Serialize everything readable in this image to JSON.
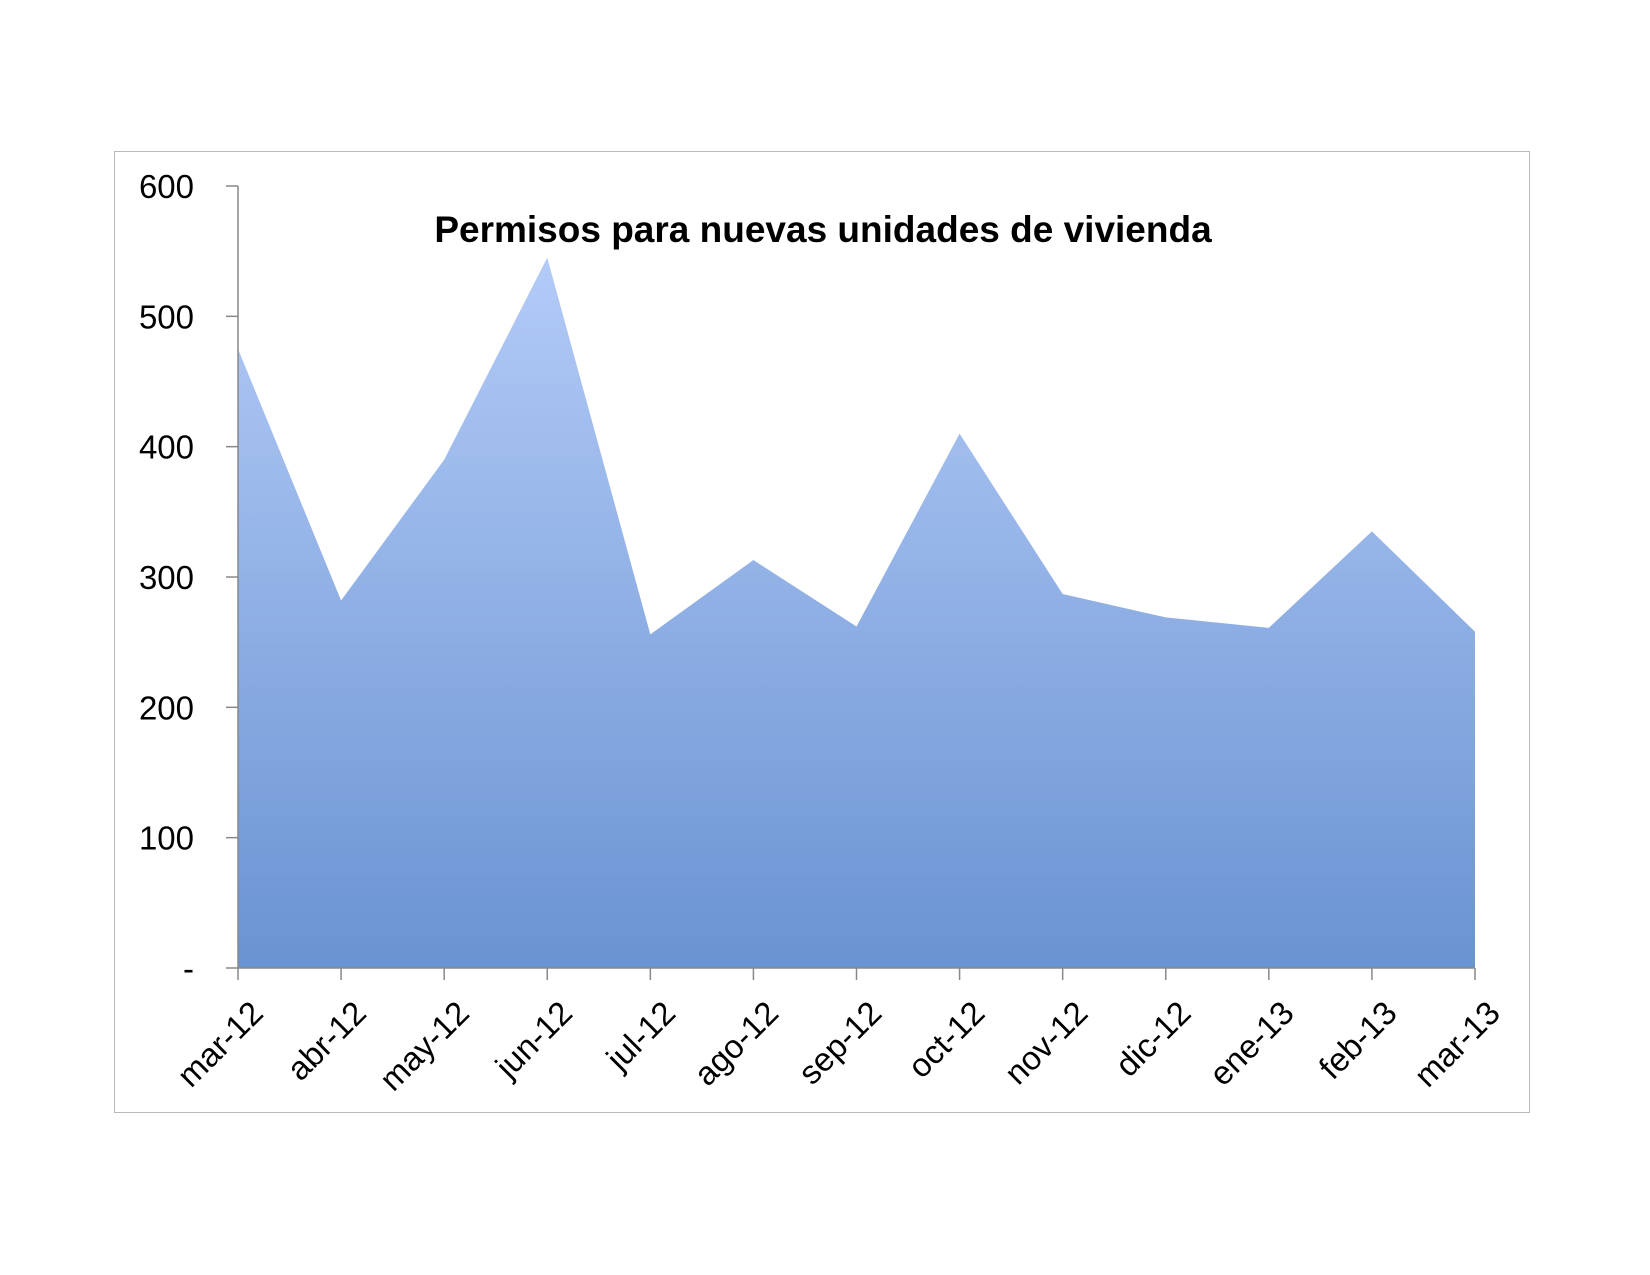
{
  "chart_data": {
    "type": "area",
    "title": "Permisos para nuevas unidades de vivienda",
    "xlabel": "",
    "ylabel": "",
    "categories": [
      "mar-12",
      "abr-12",
      "may-12",
      "jun-12",
      "jul-12",
      "ago-12",
      "sep-12",
      "oct-12",
      "nov-12",
      "dic-12",
      "ene-13",
      "feb-13",
      "mar-13"
    ],
    "values": [
      475,
      282,
      390,
      545,
      256,
      313,
      262,
      410,
      287,
      269,
      261,
      335,
      258
    ],
    "ylim": [
      0,
      600
    ],
    "y_ticks": [
      0,
      100,
      200,
      300,
      400,
      500,
      600
    ],
    "y_tick_labels": [
      "-",
      "100",
      "200",
      "300",
      "400",
      "500",
      "600"
    ],
    "grid": false,
    "legend": "none",
    "colors": {
      "fill_top": "#b3cbf7",
      "fill_bottom": "#6a93d2",
      "axis": "#888888",
      "frame": "#b9b9b9"
    }
  }
}
